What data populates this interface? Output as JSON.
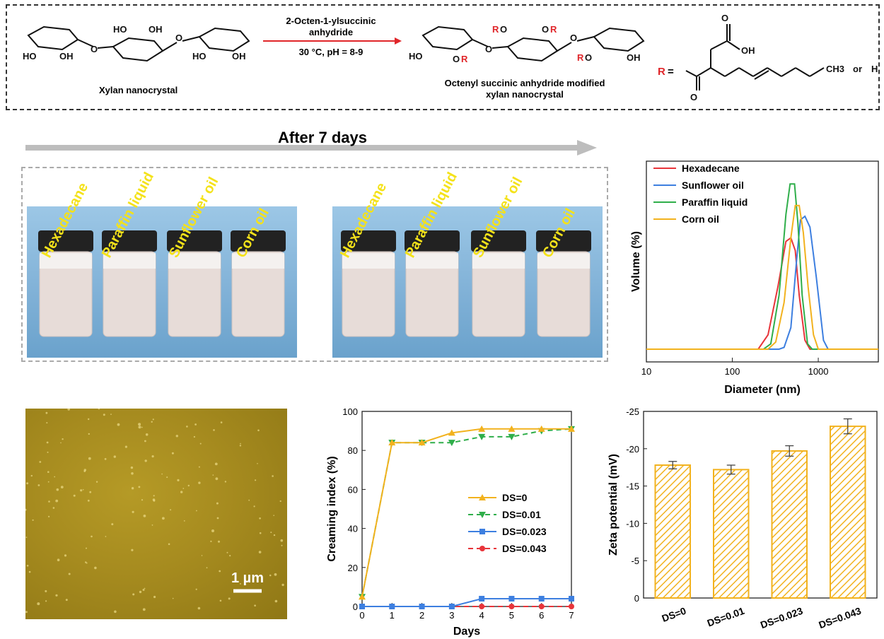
{
  "scheme": {
    "reactant_label": "Xylan nanocrystal",
    "reagent_line1": "2-Octen-1-ylsuccinic",
    "reagent_line2": "anhydride",
    "conditions": "30 °C, pH = 8-9",
    "product_line1": "Octenyl succinic anhydride modified",
    "product_line2": "xylan nanocrystal",
    "r_label": "R",
    "r_equals": "=",
    "ch3": "CH3",
    "or_text": "or",
    "h_text": "H",
    "oh": "OH",
    "ho": "HO",
    "ro": "RO",
    "o": "O",
    "r_color": "#e0262a"
  },
  "after_label": "After 7 days",
  "vial_labels": [
    "Hexadecane",
    "Paraffin liquid",
    "Sunflower oil",
    "Corn oil"
  ],
  "afm": {
    "scalebar_label": "1 µm"
  },
  "chart_data": [
    {
      "type": "line",
      "title": "",
      "xlabel": "Diameter (nm)",
      "ylabel": "Volume (%)",
      "xscale": "log",
      "xlim": [
        10,
        5000
      ],
      "x_ticks": [
        10,
        100,
        1000
      ],
      "y_ticks_shown": false,
      "legend": "top-left",
      "series": [
        {
          "name": "Hexadecane",
          "color": "#e8343a",
          "x": [
            10,
            180,
            200,
            260,
            340,
            420,
            480,
            540,
            600,
            700,
            800,
            5000
          ],
          "y": [
            0,
            0,
            0,
            8,
            35,
            60,
            62,
            55,
            30,
            5,
            0,
            0
          ]
        },
        {
          "name": "Sunflower oil",
          "color": "#3d7fe0",
          "x": [
            10,
            350,
            400,
            480,
            560,
            620,
            700,
            800,
            950,
            1150,
            1300,
            5000
          ],
          "y": [
            0,
            0,
            1,
            12,
            50,
            72,
            74,
            68,
            40,
            5,
            0,
            0
          ]
        },
        {
          "name": "Paraffin liquid",
          "color": "#2fae4a",
          "x": [
            10,
            230,
            280,
            350,
            420,
            470,
            530,
            580,
            650,
            750,
            850,
            5000
          ],
          "y": [
            0,
            0,
            3,
            30,
            75,
            92,
            92,
            70,
            30,
            3,
            0,
            0
          ]
        },
        {
          "name": "Corn oil",
          "color": "#f2b21e",
          "x": [
            10,
            260,
            320,
            400,
            480,
            540,
            600,
            670,
            760,
            880,
            1000,
            5000
          ],
          "y": [
            0,
            0,
            4,
            26,
            62,
            80,
            80,
            65,
            35,
            8,
            0,
            0
          ]
        }
      ]
    },
    {
      "type": "line",
      "title": "",
      "xlabel": "Days",
      "ylabel": "Creaming index (%)",
      "xlim": [
        0,
        7
      ],
      "ylim": [
        0,
        100
      ],
      "x_ticks": [
        0,
        1,
        2,
        3,
        4,
        5,
        6,
        7
      ],
      "y_ticks": [
        0,
        20,
        40,
        60,
        80,
        100
      ],
      "legend": "bottom-right",
      "x": [
        0,
        1,
        2,
        3,
        4,
        5,
        6,
        7
      ],
      "series": [
        {
          "name": "DS=0",
          "color": "#f2b21e",
          "marker": "triangle-up",
          "dash": false,
          "values": [
            5,
            84,
            84,
            89,
            91,
            91,
            91,
            91
          ]
        },
        {
          "name": "DS=0.01",
          "color": "#2fae4a",
          "marker": "triangle-down",
          "dash": true,
          "values": [
            5,
            84,
            84,
            84,
            87,
            87,
            90,
            91
          ]
        },
        {
          "name": "DS=0.023",
          "color": "#3d7fe0",
          "marker": "square",
          "dash": false,
          "values": [
            0,
            0,
            0,
            0,
            4,
            4,
            4,
            4
          ]
        },
        {
          "name": "DS=0.043",
          "color": "#e8343a",
          "marker": "circle",
          "dash": true,
          "values": [
            0,
            0,
            0,
            0,
            0,
            0,
            0,
            0
          ]
        }
      ]
    },
    {
      "type": "bar",
      "title": "",
      "xlabel": "",
      "ylabel": "Zeta potential (mV)",
      "ylim": [
        0,
        -25
      ],
      "y_ticks": [
        0,
        -5,
        -10,
        -15,
        -20,
        -25
      ],
      "categories": [
        "DS=0",
        "DS=0.01",
        "DS=0.023",
        "DS=0.043"
      ],
      "values": [
        -17.8,
        -17.2,
        -19.7,
        -23.0
      ],
      "errors": [
        0.5,
        0.6,
        0.7,
        1.0
      ],
      "bar_color": "#f2b21e",
      "hatch": true
    }
  ]
}
